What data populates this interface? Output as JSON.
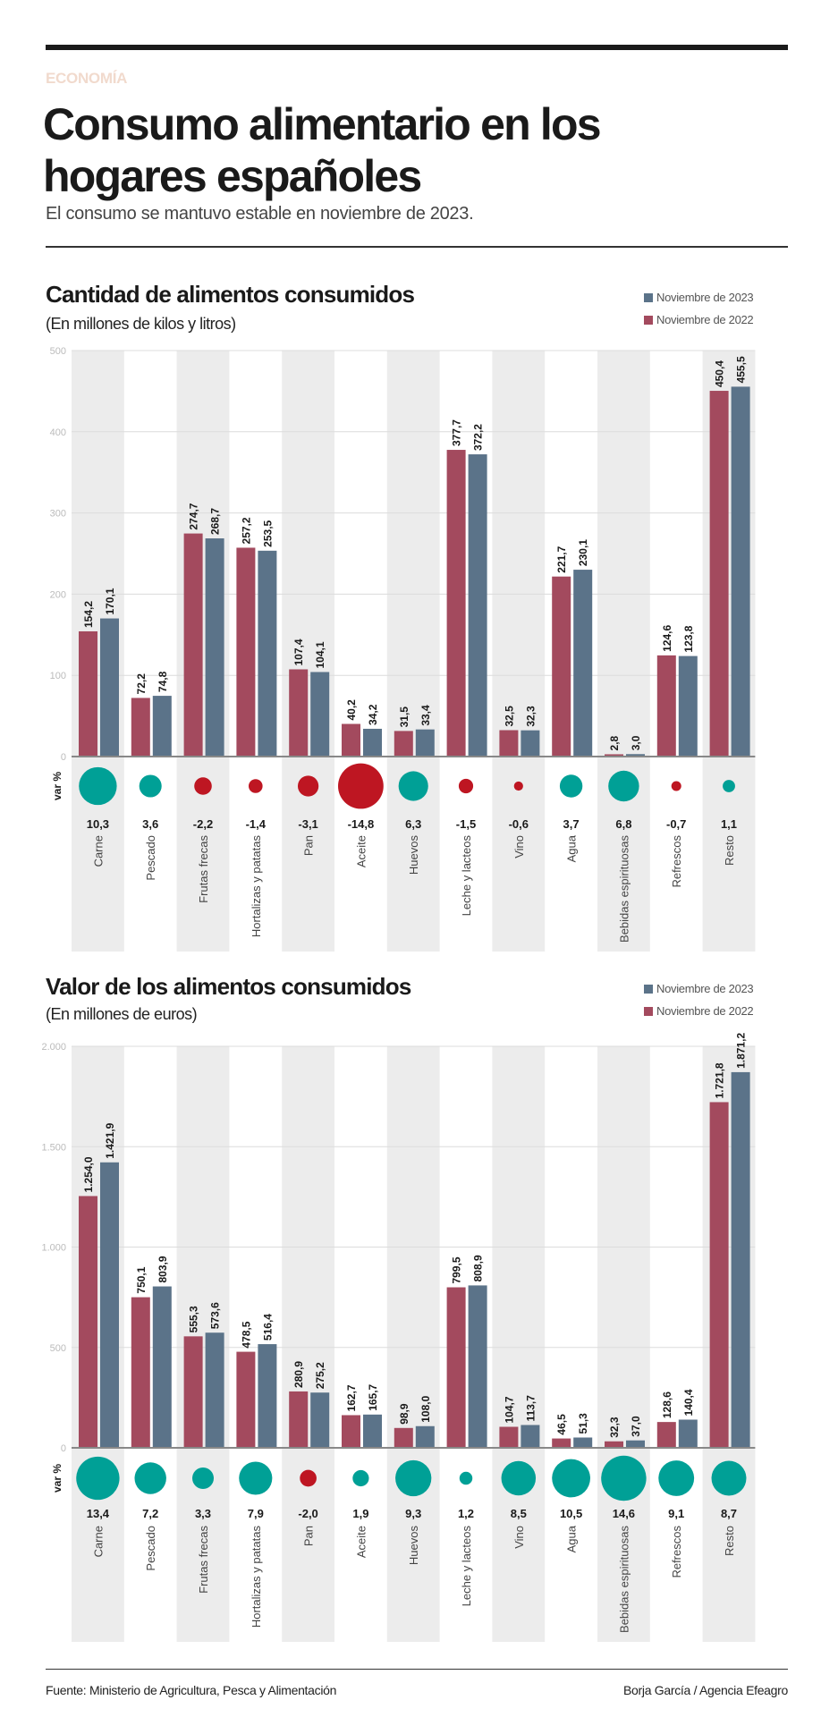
{
  "header": {
    "section": "ECONOMÍA",
    "title": "Consumo alimentario en los hogares españoles",
    "subtitle": "El consumo se mantuvo estable en noviembre de 2023."
  },
  "colors": {
    "nov2023": "#5b7389",
    "nov2022": "#a34a5e",
    "positive": "#00a096",
    "negative": "#be1622",
    "band": "#ececec"
  },
  "chart_data": [
    {
      "type": "bar",
      "title": "Cantidad de alimentos consumidos",
      "subtitle": "(En millones de kilos y litros)",
      "ylim": [
        0,
        500
      ],
      "yticks": [
        0,
        100,
        200,
        300,
        400,
        500
      ],
      "ytick_labels": [
        "0",
        "100",
        "200",
        "300",
        "400",
        "500"
      ],
      "grid": true,
      "legend_placement": "top-right",
      "var_label": "var %",
      "categories": [
        "Carne",
        "Pescado",
        "Frutas frecas",
        "Hortalizas y patatas",
        "Pan",
        "Aceite",
        "Huevos",
        "Leche y lacteos",
        "Vino",
        "Agua",
        "Bebidas espirituosas",
        "Refrescos",
        "Resto"
      ],
      "series": [
        {
          "name": "Noviembre de 2022",
          "values": [
            154.2,
            72.2,
            274.7,
            257.2,
            107.4,
            40.2,
            31.5,
            377.7,
            32.5,
            221.7,
            2.8,
            124.6,
            450.4
          ],
          "labels": [
            "154,2",
            "72,2",
            "274,7",
            "257,2",
            "107,4",
            "40,2",
            "31,5",
            "377,7",
            "32,5",
            "221,7",
            "2,8",
            "124,6",
            "450,4"
          ]
        },
        {
          "name": "Noviembre de 2023",
          "values": [
            170.1,
            74.8,
            268.7,
            253.5,
            104.1,
            34.2,
            33.4,
            372.2,
            32.3,
            230.1,
            3.0,
            123.8,
            455.5
          ],
          "labels": [
            "170,1",
            "74,8",
            "268,7",
            "253,5",
            "104,1",
            "34,2",
            "33,4",
            "372,2",
            "32,3",
            "230,1",
            "3,0",
            "123,8",
            "455,5"
          ]
        }
      ],
      "var_pct": [
        10.3,
        3.6,
        -2.2,
        -1.4,
        -3.1,
        -14.8,
        6.3,
        -1.5,
        -0.6,
        3.7,
        6.8,
        -0.7,
        1.1
      ],
      "var_labels": [
        "10,3",
        "3,6",
        "-2,2",
        "-1,4",
        "-3,1",
        "-14,8",
        "6,3",
        "-1,5",
        "-0,6",
        "3,7",
        "6,8",
        "-0,7",
        "1,1"
      ]
    },
    {
      "type": "bar",
      "title": "Valor de los alimentos consumidos",
      "subtitle": "(En millones de euros)",
      "ylim": [
        0,
        2000
      ],
      "yticks": [
        0,
        500,
        1000,
        1500,
        2000
      ],
      "ytick_labels": [
        "0",
        "500",
        "1.000",
        "1.500",
        "2.000"
      ],
      "grid": true,
      "legend_placement": "top-right",
      "var_label": "var %",
      "categories": [
        "Carne",
        "Pescado",
        "Frutas frecas",
        "Hortalizas y patatas",
        "Pan",
        "Aceite",
        "Huevos",
        "Leche y lacteos",
        "Vino",
        "Agua",
        "Bebidas espirituosas",
        "Refrescos",
        "Resto"
      ],
      "series": [
        {
          "name": "Noviembre de 2022",
          "values": [
            1254.0,
            750.1,
            555.3,
            478.5,
            280.9,
            162.7,
            98.9,
            799.5,
            104.7,
            46.5,
            32.3,
            128.6,
            1721.8
          ],
          "labels": [
            "1.254,0",
            "750,1",
            "555,3",
            "478,5",
            "280,9",
            "162,7",
            "98,9",
            "799,5",
            "104,7",
            "46,5",
            "32,3",
            "128,6",
            "1.721,8"
          ]
        },
        {
          "name": "Noviembre de 2023",
          "values": [
            1421.9,
            803.9,
            573.6,
            516.4,
            275.2,
            165.7,
            108.0,
            808.9,
            113.7,
            51.3,
            37.0,
            140.4,
            1871.2
          ],
          "labels": [
            "1.421,9",
            "803,9",
            "573,6",
            "516,4",
            "275,2",
            "165,7",
            "108,0",
            "808,9",
            "113,7",
            "51,3",
            "37,0",
            "140,4",
            "1.871,2"
          ]
        }
      ],
      "var_pct": [
        13.4,
        7.2,
        3.3,
        7.9,
        -2.0,
        1.9,
        9.3,
        1.2,
        8.5,
        10.5,
        14.6,
        9.1,
        8.7
      ],
      "var_labels": [
        "13,4",
        "7,2",
        "3,3",
        "7,9",
        "-2,0",
        "1,9",
        "9,3",
        "1,2",
        "8,5",
        "10,5",
        "14,6",
        "9,1",
        "8,7"
      ]
    }
  ],
  "footer": {
    "source": "Fuente: Ministerio de Agricultura, Pesca y Alimentación",
    "credit": "Borja García / Agencia Efeagro"
  }
}
